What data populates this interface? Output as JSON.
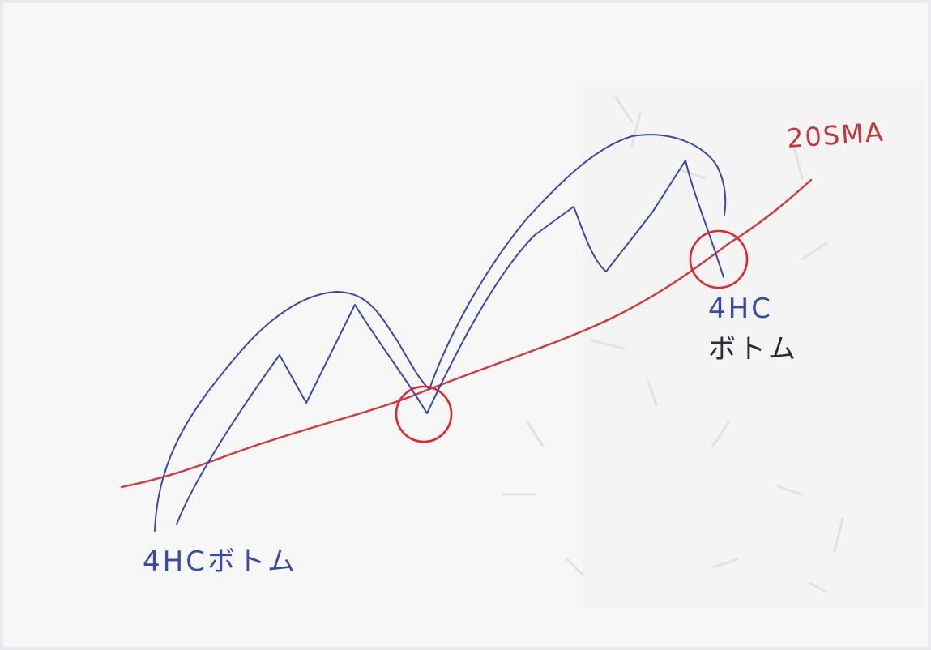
{
  "diagram": {
    "ma_label": "20SMA",
    "label_left": "4HCボトム",
    "label_right_line1": "4HC",
    "label_right_line2": "ボトム",
    "colors": {
      "price_line": "#3b4aa6",
      "ma_line": "#d33a3f",
      "highlight_circle": "#e1262f",
      "paper": "#f7f7f8"
    }
  }
}
